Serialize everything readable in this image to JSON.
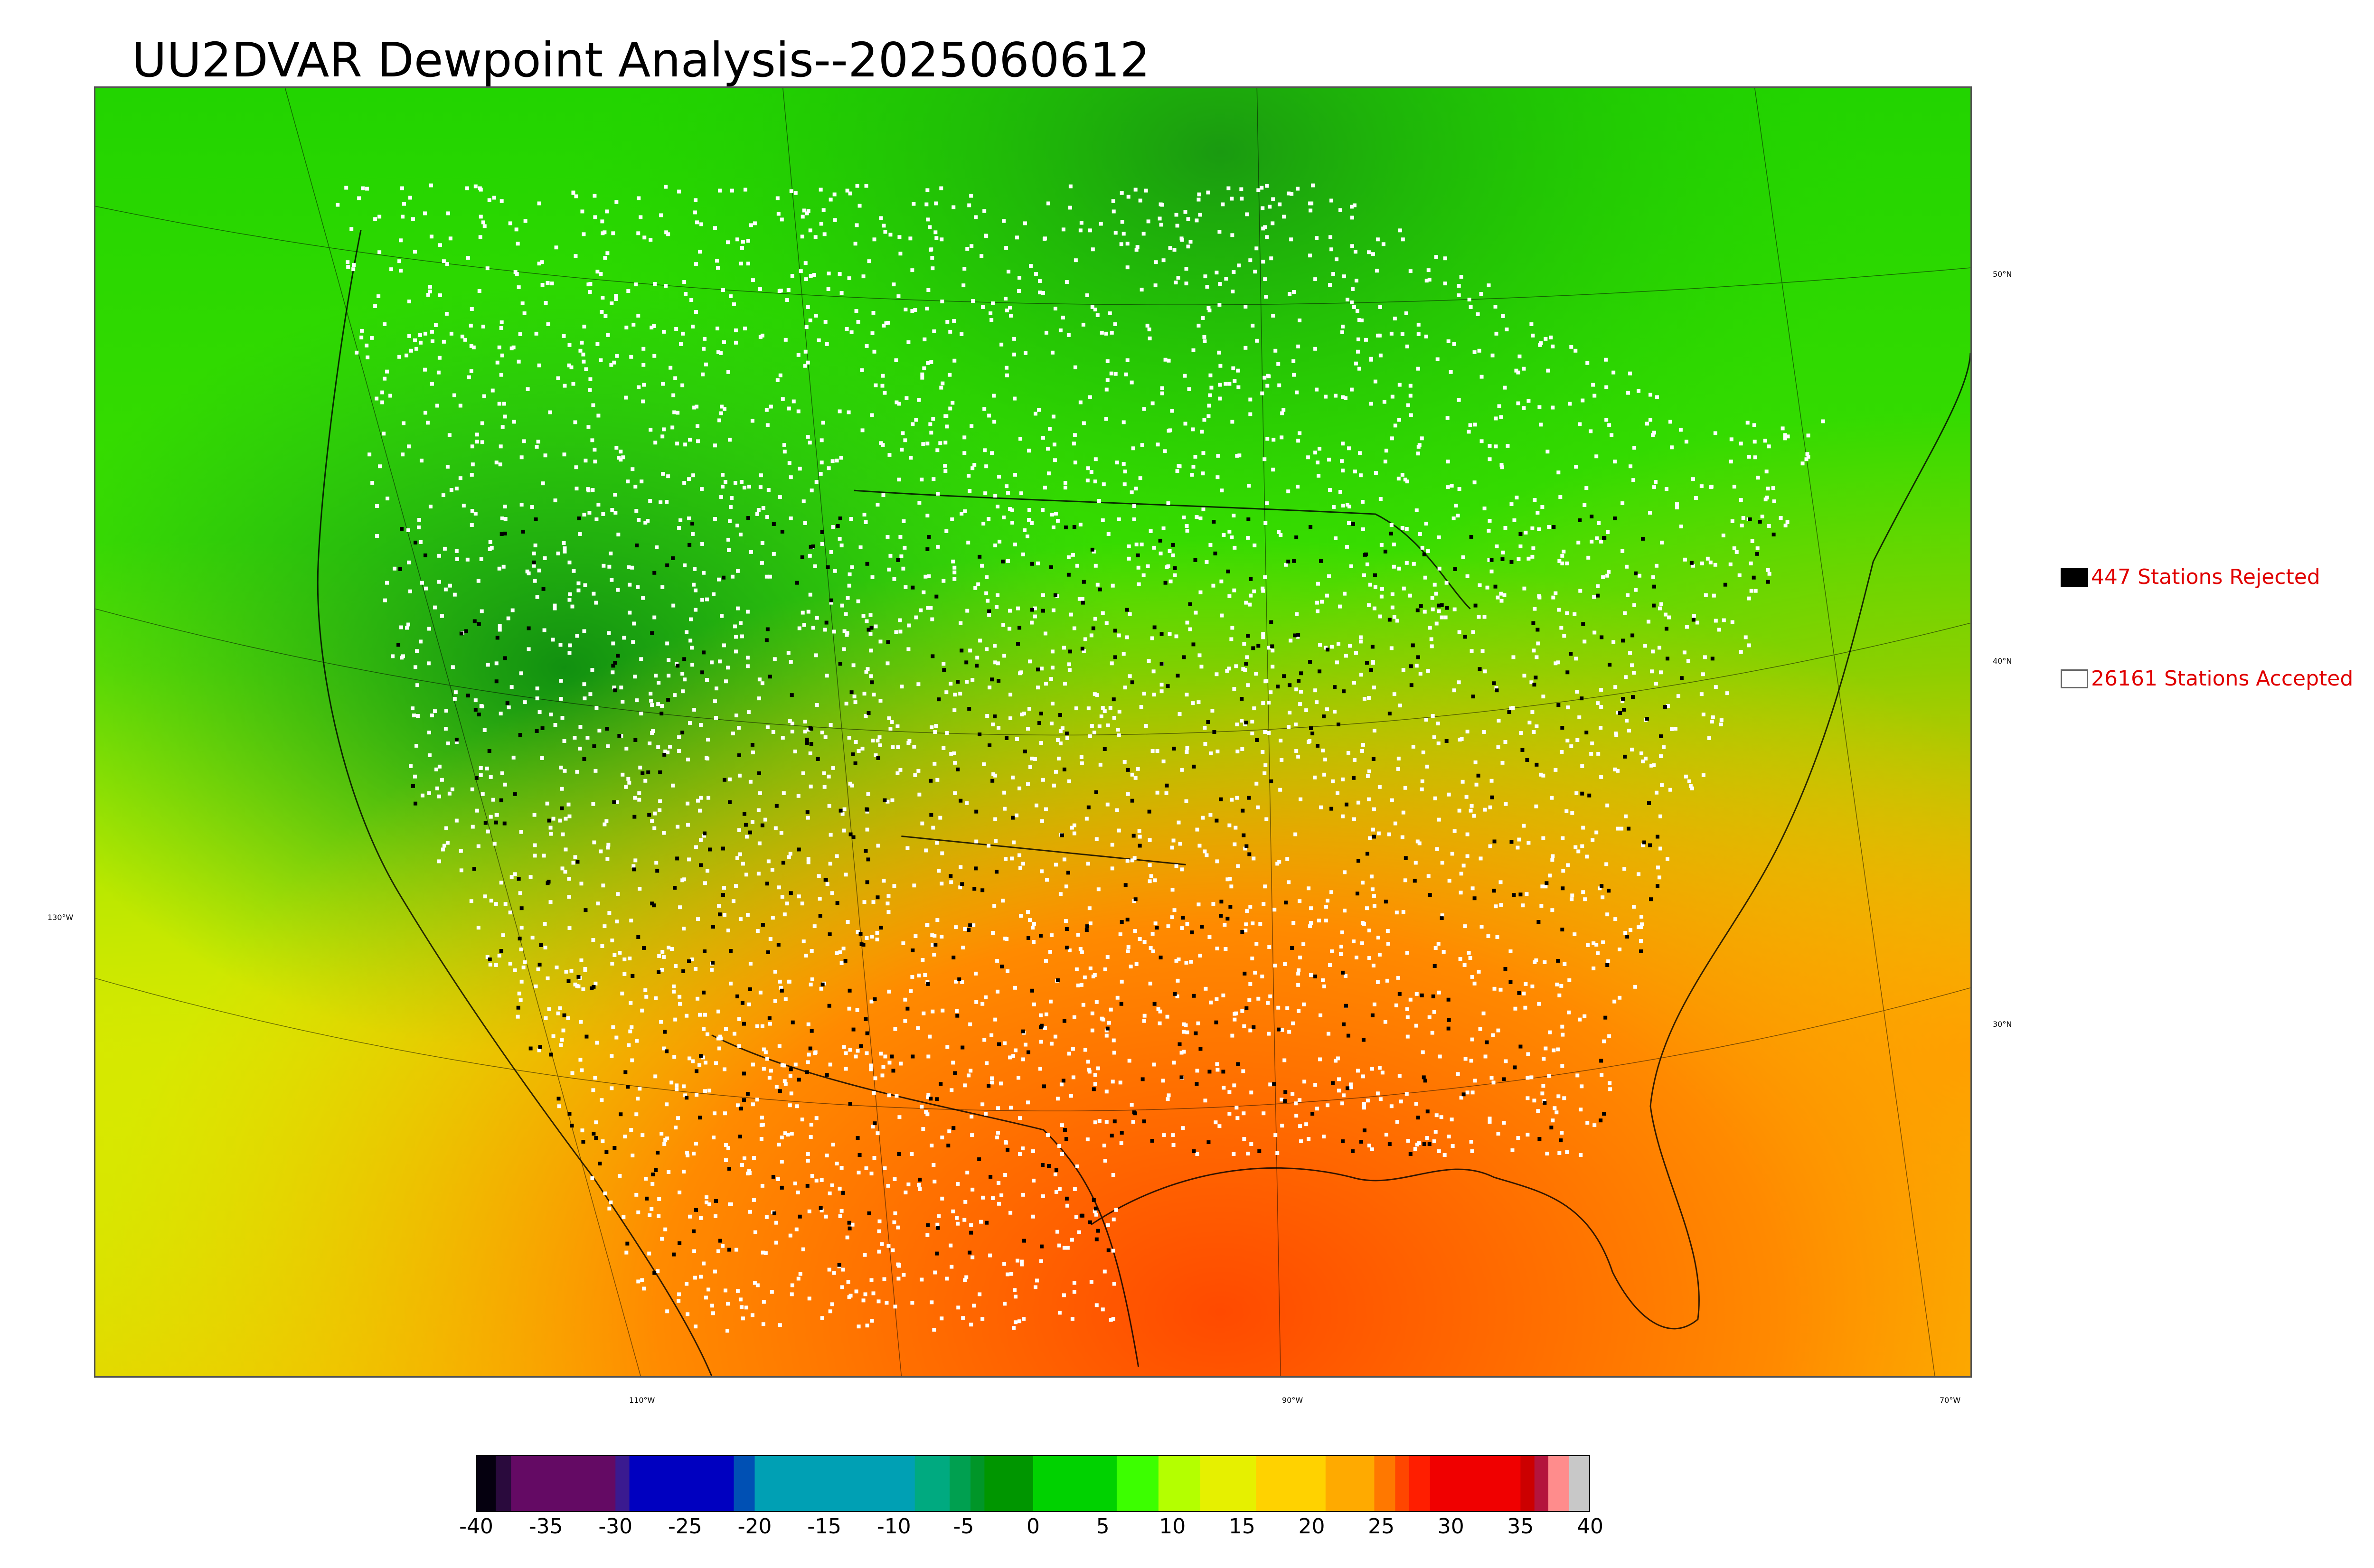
{
  "title": "UU2DVAR Dewpoint Analysis--2025060612",
  "legend": {
    "rejected": {
      "count": "447",
      "label": "447 Stations Rejected",
      "swatch_color": "#000000"
    },
    "accepted": {
      "count": "26161",
      "label": "26161 Stations Accepted",
      "swatch_color": "#ffffff"
    }
  },
  "graticule": {
    "lat_labels": [
      "50°N",
      "40°N",
      "30°N"
    ],
    "lon_labels": [
      "130°W",
      "110°W",
      "90°W",
      "70°W"
    ]
  },
  "colorbar": {
    "tick_labels": [
      "-40",
      "-35",
      "-30",
      "-25",
      "-20",
      "-15",
      "-10",
      "-5",
      "0",
      "5",
      "10",
      "15",
      "20",
      "25",
      "30",
      "35",
      "40"
    ],
    "range": [
      -40,
      40
    ],
    "segments": [
      {
        "from": -40,
        "to": -38.6,
        "color": "#05000f"
      },
      {
        "from": -38.6,
        "to": -37.5,
        "color": "#2a0a3d"
      },
      {
        "from": -37.5,
        "to": -30,
        "color": "#640a64"
      },
      {
        "from": -30,
        "to": -29,
        "color": "#3a1a90"
      },
      {
        "from": -29,
        "to": -21.5,
        "color": "#0000c0"
      },
      {
        "from": -21.5,
        "to": -20,
        "color": "#0050b4"
      },
      {
        "from": -20,
        "to": -8.5,
        "color": "#00a0b4"
      },
      {
        "from": -8.5,
        "to": -6,
        "color": "#00aa80"
      },
      {
        "from": -6,
        "to": -4.5,
        "color": "#00a050"
      },
      {
        "from": -4.5,
        "to": -3.5,
        "color": "#009628"
      },
      {
        "from": -3.5,
        "to": 0,
        "color": "#009600"
      },
      {
        "from": 0,
        "to": 6,
        "color": "#00d200"
      },
      {
        "from": 6,
        "to": 9,
        "color": "#3cff00"
      },
      {
        "from": 9,
        "to": 12,
        "color": "#b4ff00"
      },
      {
        "from": 12,
        "to": 16,
        "color": "#e6f000"
      },
      {
        "from": 16,
        "to": 21,
        "color": "#ffd200"
      },
      {
        "from": 21,
        "to": 24.5,
        "color": "#ffaa00"
      },
      {
        "from": 24.5,
        "to": 26,
        "color": "#ff7800"
      },
      {
        "from": 26,
        "to": 27,
        "color": "#ff4600"
      },
      {
        "from": 27,
        "to": 28.5,
        "color": "#ff1e00"
      },
      {
        "from": 28.5,
        "to": 35,
        "color": "#f00000"
      },
      {
        "from": 35,
        "to": 36,
        "color": "#cc0000"
      },
      {
        "from": 36,
        "to": 37,
        "color": "#b4143c"
      },
      {
        "from": 37,
        "to": 38.5,
        "color": "#ff8c8c"
      },
      {
        "from": 38.5,
        "to": 40,
        "color": "#c8c8c8"
      }
    ]
  },
  "map": {
    "colors": {
      "cold_north": "#22d600",
      "dark_green": "#159a10",
      "mid_green": "#28d228",
      "yellow_green": "#c8f000",
      "yellow": "#f0e000",
      "orange": "#ffa000",
      "red_orange": "#ff5a00",
      "station_accepted": "#ffffff",
      "station_rejected": "#000000"
    }
  }
}
